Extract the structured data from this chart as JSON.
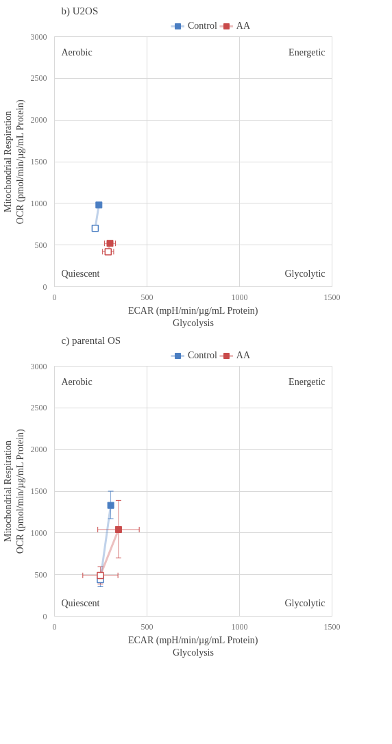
{
  "chart_data": [
    {
      "type": "line",
      "title": "b) U2OS",
      "xlabel": "ECAR (mpH/min/µg/mL Protein)\nGlycolysis",
      "ylabel": "Mitochondrial Respiration\nOCR (pmol/min/µg/mL Protein)",
      "xlim": [
        0,
        1500
      ],
      "xticks": [
        0,
        500,
        1000,
        1500
      ],
      "ylim": [
        0,
        3000
      ],
      "yticks": [
        0,
        500,
        1000,
        1500,
        2000,
        2500,
        3000
      ],
      "grid": true,
      "legend": "top",
      "marker": "square",
      "annotations": [
        "Aerobic",
        "Energetic",
        "Quiescent",
        "Glycolytic"
      ],
      "series": [
        {
          "name": "Control",
          "color": "#4a7ec2",
          "x": [
            220,
            240
          ],
          "values": [
            700,
            980
          ]
        },
        {
          "name": "AA",
          "color": "#c94a4a",
          "x": [
            290,
            300
          ],
          "values": [
            420,
            520
          ],
          "xerrors": [
            30,
            30
          ]
        }
      ]
    },
    {
      "type": "line",
      "title": "c) parental OS",
      "xlabel": "ECAR (mpH/min/µg/mL Protein)\nGlycolysis",
      "ylabel": "Mitochondrial Respiration\nOCR (pmol/min/µg/mL Protein)",
      "xlim": [
        0,
        1500
      ],
      "xticks": [
        0,
        500,
        1000,
        1500
      ],
      "ylim": [
        0,
        3000
      ],
      "yticks": [
        0,
        500,
        1000,
        1500,
        2000,
        2500,
        3000
      ],
      "grid": true,
      "legend": "top",
      "marker": "square",
      "annotations": [
        "Aerobic",
        "Energetic",
        "Quiescent",
        "Glycolytic"
      ],
      "series": [
        {
          "name": "Control",
          "color": "#4a7ec2",
          "x": [
            248,
            304
          ],
          "values": [
            440,
            1330
          ],
          "errors": [
            86,
            [
              1170,
              1500
            ]
          ]
        },
        {
          "name": "AA",
          "color": "#c94a4a",
          "x": [
            248,
            346
          ],
          "values": [
            490,
            1040
          ],
          "errors": [
            104,
            [
              700,
              1390
            ]
          ],
          "xerrors": [
            95,
            112
          ]
        }
      ]
    }
  ]
}
